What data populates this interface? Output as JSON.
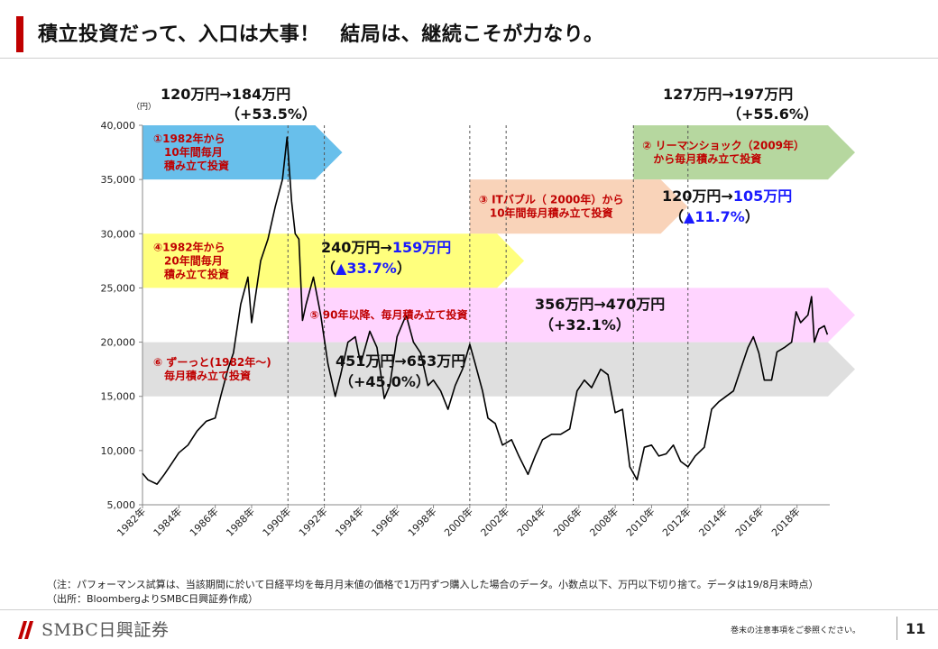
{
  "header": {
    "title": "積立投資だって、入口は大事！　結局は、継続こそが力なり。"
  },
  "chart_data": {
    "type": "line",
    "series": [
      {
        "values": [
          [
            1982.0,
            7900
          ],
          [
            1982.3,
            7300
          ],
          [
            1982.8,
            6900
          ],
          [
            1983.2,
            7800
          ],
          [
            1983.6,
            8800
          ],
          [
            1984.0,
            9800
          ],
          [
            1984.5,
            10500
          ],
          [
            1985.0,
            11800
          ],
          [
            1985.5,
            12700
          ],
          [
            1986.0,
            13000
          ],
          [
            1986.3,
            15000
          ],
          [
            1986.7,
            17500
          ],
          [
            1987.0,
            19000
          ],
          [
            1987.4,
            23500
          ],
          [
            1987.8,
            26000
          ],
          [
            1988.0,
            21800
          ],
          [
            1988.5,
            27500
          ],
          [
            1988.9,
            29500
          ],
          [
            1989.3,
            32500
          ],
          [
            1989.7,
            35000
          ],
          [
            1989.95,
            38900
          ],
          [
            1990.2,
            33000
          ],
          [
            1990.4,
            30000
          ],
          [
            1990.6,
            29500
          ],
          [
            1990.8,
            22000
          ],
          [
            1991.0,
            23500
          ],
          [
            1991.4,
            26000
          ],
          [
            1991.8,
            22500
          ],
          [
            1992.2,
            18000
          ],
          [
            1992.6,
            15000
          ],
          [
            1992.9,
            17000
          ],
          [
            1993.3,
            20000
          ],
          [
            1993.7,
            20500
          ],
          [
            1994.0,
            18000
          ],
          [
            1994.5,
            21000
          ],
          [
            1994.9,
            19500
          ],
          [
            1995.3,
            14800
          ],
          [
            1995.6,
            16000
          ],
          [
            1996.0,
            20500
          ],
          [
            1996.5,
            22500
          ],
          [
            1996.9,
            20000
          ],
          [
            1997.3,
            19000
          ],
          [
            1997.7,
            16000
          ],
          [
            1998.0,
            16500
          ],
          [
            1998.4,
            15500
          ],
          [
            1998.8,
            13800
          ],
          [
            1999.2,
            16000
          ],
          [
            1999.6,
            17500
          ],
          [
            2000.0,
            19800
          ],
          [
            2000.3,
            18000
          ],
          [
            2000.7,
            15500
          ],
          [
            2001.0,
            13000
          ],
          [
            2001.4,
            12500
          ],
          [
            2001.8,
            10500
          ],
          [
            2002.3,
            11000
          ],
          [
            2002.7,
            9500
          ],
          [
            2003.2,
            7800
          ],
          [
            2003.6,
            9500
          ],
          [
            2004.0,
            11000
          ],
          [
            2004.5,
            11500
          ],
          [
            2005.0,
            11500
          ],
          [
            2005.5,
            12000
          ],
          [
            2005.9,
            15500
          ],
          [
            2006.3,
            16500
          ],
          [
            2006.7,
            15800
          ],
          [
            2007.2,
            17500
          ],
          [
            2007.6,
            17000
          ],
          [
            2008.0,
            13500
          ],
          [
            2008.4,
            13800
          ],
          [
            2008.8,
            8500
          ],
          [
            2009.2,
            7300
          ],
          [
            2009.6,
            10300
          ],
          [
            2010.0,
            10500
          ],
          [
            2010.4,
            9500
          ],
          [
            2010.8,
            9700
          ],
          [
            2011.2,
            10500
          ],
          [
            2011.6,
            9000
          ],
          [
            2012.0,
            8500
          ],
          [
            2012.4,
            9500
          ],
          [
            2012.9,
            10300
          ],
          [
            2013.3,
            13800
          ],
          [
            2013.7,
            14500
          ],
          [
            2014.1,
            15000
          ],
          [
            2014.5,
            15500
          ],
          [
            2014.9,
            17500
          ],
          [
            2015.3,
            19500
          ],
          [
            2015.6,
            20500
          ],
          [
            2015.9,
            19000
          ],
          [
            2016.2,
            16500
          ],
          [
            2016.6,
            16500
          ],
          [
            2016.9,
            19100
          ],
          [
            2017.3,
            19500
          ],
          [
            2017.7,
            20000
          ],
          [
            2017.95,
            22800
          ],
          [
            2018.2,
            21800
          ],
          [
            2018.6,
            22500
          ],
          [
            2018.8,
            24200
          ],
          [
            2018.95,
            20000
          ],
          [
            2019.2,
            21200
          ],
          [
            2019.5,
            21500
          ],
          [
            2019.67,
            20700
          ]
        ]
      }
    ],
    "x_ticks": [
      "1982年",
      "1984年",
      "1986年",
      "1988年",
      "1990年",
      "1992年",
      "1994年",
      "1996年",
      "1998年",
      "2000年",
      "2002年",
      "2004年",
      "2006年",
      "2008年",
      "2010年",
      "2012年",
      "2014年",
      "2016年",
      "2018年"
    ],
    "y_ticks": [
      "5,000",
      "10,000",
      "15,000",
      "20,000",
      "25,000",
      "30,000",
      "35,000",
      "40,000"
    ],
    "y_unit": "（円）",
    "ylim": [
      5000,
      40000
    ],
    "xlim": [
      1982,
      2019.8
    ],
    "grid": false,
    "divider_years": [
      1990,
      1992,
      2000,
      2002,
      2009,
      2012
    ],
    "bands": [
      {
        "id": "band-1",
        "label": "①1982年から\n　10年間毎月\n　積み立て投資",
        "x0": 1982,
        "x1": 1991.5,
        "y0": 35000,
        "y1": 40000,
        "color": "#4db4e8",
        "text_color": "#c00000"
      },
      {
        "id": "band-2",
        "label": "② リーマンショック（2009年）\n　から毎月積み立て投資",
        "x0": 2009,
        "x1": 2019.8,
        "y0": 35000,
        "y1": 40000,
        "color": "#a9d08e",
        "text_color": "#c00000"
      },
      {
        "id": "band-3",
        "label": "③ ITバブル（ 2000年）から\n　10年間毎月積み立て投資",
        "x0": 2000,
        "x1": 2010.5,
        "y0": 30000,
        "y1": 35000,
        "color": "#f8cbad",
        "text_color": "#c00000"
      },
      {
        "id": "band-4",
        "label": "④1982年から\n　20年間毎月\n　積み立て投資",
        "x0": 1982,
        "x1": 2001.5,
        "y0": 25000,
        "y1": 30000,
        "color": "#ffff66",
        "text_color": "#c00000"
      },
      {
        "id": "band-5",
        "label": "⑤ 90年以降、毎月積み立て投資",
        "x0": 1990,
        "x1": 2019.8,
        "y0": 20000,
        "y1": 25000,
        "color": "#ffccff",
        "text_color": "#c00000"
      },
      {
        "id": "band-6",
        "label": "⑥ ずーっと(1982年～)\n　毎月積み立て投資",
        "x0": 1982,
        "x1": 2019.8,
        "y0": 15000,
        "y1": 20000,
        "color": "#d9d9d9",
        "text_color": "#c00000"
      }
    ],
    "annotations": [
      {
        "id": "ann-1",
        "a": "120万円→184万円",
        "b": "",
        "line2": "（+53.5%）",
        "loss": false
      },
      {
        "id": "ann-2",
        "a": "127万円→197万円",
        "b": "",
        "line2": "（+55.6%）",
        "loss": false
      },
      {
        "id": "ann-3",
        "a": "120万円→",
        "b": "105万円",
        "line2": "（▲11.7%）",
        "loss": true
      },
      {
        "id": "ann-4",
        "a": "240万円→",
        "b": "159万円",
        "line2": "（▲33.7%）",
        "loss": true
      },
      {
        "id": "ann-5",
        "a": "356万円→470万円",
        "b": "",
        "line2": "（+32.1%）",
        "loss": false
      },
      {
        "id": "ann-6",
        "a": "451万円→653万円",
        "b": "",
        "line2": "（+45.0%）",
        "loss": false
      }
    ],
    "loss_color": "#1a1aff",
    "line_color": "#000000"
  },
  "notes": [
    "（注：パフォーマンス試算は、当該期間に於いて日経平均を毎月月末値の価格で1万円ずつ購入した場合のデータ。小数点以下、万円以下切り捨て。データは19/8月末時点）",
    "（出所：BloombergよりSMBC日興証券作成）"
  ],
  "footer": {
    "logo_text": "SMBC日興証券",
    "disclaimer": "巻末の注意事項をご参照ください。",
    "page_number": "11"
  },
  "colors": {
    "accent": "#c00000"
  }
}
